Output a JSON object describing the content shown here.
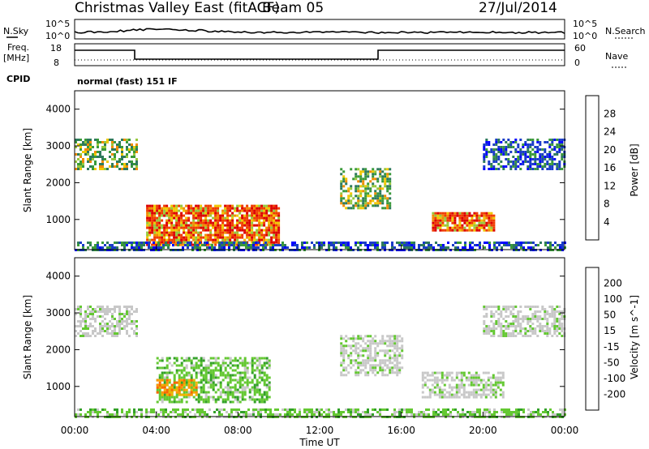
{
  "header": {
    "title": "Christmas Valley East (fitACF)",
    "beam": "Beam 05",
    "date": "27/Jul/2014"
  },
  "top_strip": {
    "nsky_label": "N.Sky",
    "nsky_ticks": [
      "10^5",
      "10^0"
    ],
    "nsearch_label": "N.Search",
    "nsearch_ticks": [
      "10^5",
      "10^0"
    ],
    "freq_label": "Freq.",
    "freq_unit": "[MHz]",
    "freq_ticks": [
      "18",
      "8"
    ],
    "nave_label": "Nave",
    "nave_ticks": [
      "60",
      "0"
    ],
    "cpid_label": "CPID",
    "cpid_value": "normal (fast) 151 IF"
  },
  "colors": {
    "power_scale": [
      "#0000ff",
      "#1a3cc8",
      "#2e7a5c",
      "#3a9a3a",
      "#96c83c",
      "#f0c800",
      "#f08c00",
      "#f03c00",
      "#dc0000"
    ],
    "velocity_scale": [
      "#ff0000",
      "#ff6400",
      "#ff9600",
      "#f0b400",
      "#c8c8c8",
      "#c8c8c8",
      "#64c832",
      "#32a028",
      "#146496",
      "#0000c8"
    ]
  },
  "chart_data": [
    {
      "type": "heatmap",
      "name": "power",
      "xlabel": "",
      "ylabel": "Slant Range [km]",
      "x_range": [
        "00:00",
        "00:00"
      ],
      "y_range": [
        180,
        4500
      ],
      "y_ticks": [
        "4000",
        "3000",
        "2000",
        "1000"
      ],
      "colorbar_label": "Power [dB]",
      "colorbar_ticks": [
        "28",
        "24",
        "20",
        "16",
        "12",
        "8",
        "4"
      ],
      "regions": [
        {
          "t_start": 0.0,
          "t_end": 3.0,
          "r_start": 2400,
          "r_end": 3200,
          "level": "mid"
        },
        {
          "t_start": 3.5,
          "t_end": 10.0,
          "r_start": 300,
          "r_end": 1400,
          "level": "high"
        },
        {
          "t_start": 13.0,
          "t_end": 15.5,
          "r_start": 1300,
          "r_end": 2400,
          "level": "mid"
        },
        {
          "t_start": 17.5,
          "t_end": 20.5,
          "r_start": 700,
          "r_end": 1200,
          "level": "high"
        },
        {
          "t_start": 20.0,
          "t_end": 24.0,
          "r_start": 2400,
          "r_end": 3200,
          "level": "low"
        },
        {
          "t_start": 0.0,
          "t_end": 24.0,
          "r_start": 180,
          "r_end": 400,
          "level": "low"
        }
      ]
    },
    {
      "type": "heatmap",
      "name": "velocity",
      "xlabel": "Time UT",
      "ylabel": "Slant Range [km]",
      "x_ticks": [
        "00:00",
        "04:00",
        "08:00",
        "12:00",
        "16:00",
        "20:00",
        "00:00"
      ],
      "y_range": [
        180,
        4500
      ],
      "y_ticks": [
        "4000",
        "3000",
        "2000",
        "1000"
      ],
      "colorbar_label": "Velocity [m s^-1]",
      "colorbar_ticks": [
        "200",
        "100",
        "50",
        "15",
        "-15",
        "-50",
        "-100",
        "-200"
      ],
      "regions": [
        {
          "t_start": 0.0,
          "t_end": 3.0,
          "r_start": 2400,
          "r_end": 3200,
          "level": "ground"
        },
        {
          "t_start": 4.0,
          "t_end": 9.5,
          "r_start": 600,
          "r_end": 1800,
          "level": "positive"
        },
        {
          "t_start": 4.0,
          "t_end": 6.0,
          "r_start": 800,
          "r_end": 1200,
          "level": "negative"
        },
        {
          "t_start": 13.0,
          "t_end": 16.0,
          "r_start": 1300,
          "r_end": 2400,
          "level": "ground"
        },
        {
          "t_start": 17.0,
          "t_end": 21.0,
          "r_start": 700,
          "r_end": 1400,
          "level": "ground"
        },
        {
          "t_start": 20.0,
          "t_end": 24.0,
          "r_start": 2400,
          "r_end": 3200,
          "level": "ground"
        },
        {
          "t_start": 0.0,
          "t_end": 24.0,
          "r_start": 180,
          "r_end": 400,
          "level": "positive"
        }
      ]
    }
  ]
}
